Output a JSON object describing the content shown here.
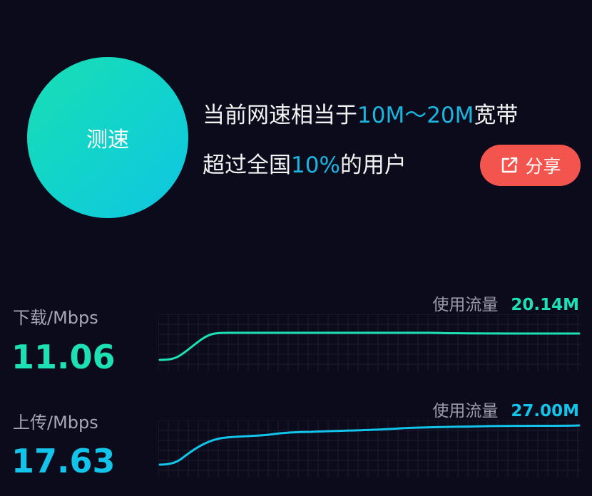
{
  "speed_button": {
    "label": "测速"
  },
  "summary": {
    "line1_prefix": "当前网速相当于",
    "line1_highlight": "10M～20M",
    "line1_suffix": "宽带",
    "line2_prefix": "超过全国",
    "line2_highlight": "10%",
    "line2_suffix": "的用户"
  },
  "share_button": {
    "label": "分享",
    "icon": "share-icon"
  },
  "download": {
    "label": "下载/Mbps",
    "value": "11.06",
    "usage_label": "使用流量",
    "usage_value": "20.14M",
    "color": "#1de0b4"
  },
  "upload": {
    "label": "上传/Mbps",
    "value": "17.63",
    "usage_label": "使用流量",
    "usage_value": "27.00M",
    "color": "#13c4ea"
  },
  "colors": {
    "background": "#0b0b1c",
    "accent_text": "#19b6e0",
    "share_button": "#f3554e",
    "speed_button_start": "#19dfb2",
    "speed_button_end": "#0ec6e2"
  }
}
